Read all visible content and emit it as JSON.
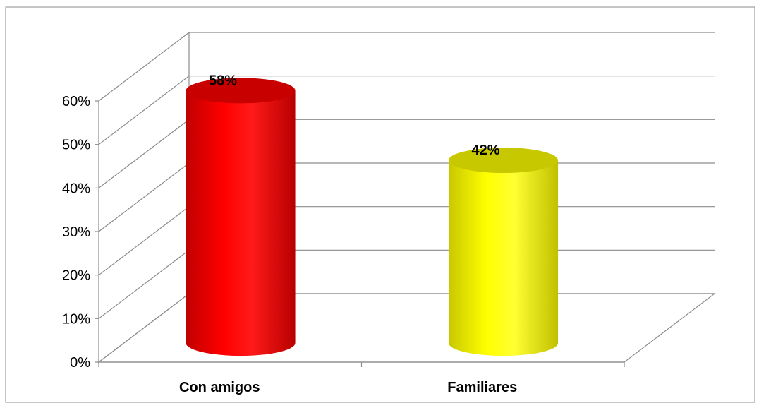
{
  "chart_data": {
    "type": "bar",
    "style": "3d-cylinder",
    "categories": [
      "Con amigos",
      "Familiares"
    ],
    "values": [
      58,
      42
    ],
    "data_labels": [
      "58%",
      "42%"
    ],
    "series": [
      {
        "values": [
          58,
          42
        ],
        "colors": [
          "#ff0000",
          "#ffff00"
        ]
      }
    ],
    "ylim": [
      0,
      60
    ],
    "y_ticks": [
      0,
      10,
      20,
      30,
      40,
      50,
      60
    ],
    "y_tick_labels": [
      "0%",
      "10%",
      "20%",
      "30%",
      "40%",
      "50%",
      "60%"
    ],
    "grid": true,
    "legend": "none"
  }
}
